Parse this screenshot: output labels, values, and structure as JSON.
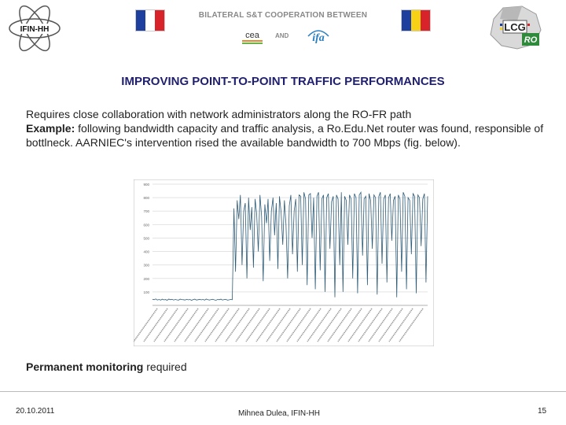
{
  "header": {
    "ifin_logo_text": "IFIN-HH",
    "title": "BILATERAL S&T COOPERATION BETWEEN",
    "and_label": "AND",
    "cea_logo_text": "cea",
    "ifa_logo_text": "ifa",
    "lcg_logo_text": "LCG",
    "ro_logo_text": "RO",
    "colors": {
      "france": [
        "#1f3f9f",
        "#ffffff",
        "#d8232a"
      ],
      "romania": [
        "#1f3f9f",
        "#f6d116",
        "#d8232a"
      ]
    }
  },
  "slide": {
    "title": "IMPROVING POINT-TO-POINT TRAFFIC PERFORMANCES",
    "line1": "Requires close collaboration with network administrators along the RO-FR path",
    "example_label": "Example:",
    "example_text": " following bandwidth capacity and traffic analysis, a Ro.Edu.Net router was found, responsible of bottlneck. AARNIEC's intervention rised the available bandwidth to 700 Mbps (fig. below).",
    "monitoring_bold": "Permanent monitoring",
    "monitoring_rest": " required"
  },
  "chart_data": {
    "type": "line",
    "title": "",
    "xlabel": "",
    "ylabel": "",
    "ylim": [
      0,
      900
    ],
    "yticks": [
      "100",
      "200",
      "300",
      "400",
      "500",
      "600",
      "700",
      "800",
      "900"
    ],
    "grid": true,
    "line_color": "#2e5c78",
    "series": [
      {
        "values": [
          45,
          42,
          48,
          40,
          44,
          39,
          46,
          41,
          43,
          38,
          47,
          42,
          45,
          40,
          44,
          41,
          39,
          46,
          43,
          42,
          40,
          45,
          41,
          44,
          38,
          43,
          46,
          40,
          42,
          45,
          41,
          44,
          39,
          47,
          42,
          40,
          43,
          45,
          41,
          38,
          44,
          42,
          46,
          40,
          43,
          45,
          39,
          41,
          44,
          42,
          720,
          250,
          780,
          640,
          820,
          300,
          700,
          760,
          200,
          800,
          560,
          730,
          280,
          790,
          680,
          400,
          820,
          660,
          180,
          750,
          610,
          790,
          330,
          700,
          800,
          520,
          760,
          270,
          810,
          690,
          450,
          780,
          600,
          200,
          740,
          820,
          380,
          700,
          790,
          250,
          820,
          810,
          300,
          840,
          790,
          150,
          820,
          830,
          500,
          800,
          120,
          810,
          840,
          260,
          790,
          820,
          100,
          800,
          830,
          420,
          770,
          810,
          60,
          820,
          790,
          300,
          840,
          100,
          810,
          780,
          450,
          820,
          790,
          200,
          830,
          800,
          90,
          820,
          840,
          370,
          790,
          810,
          150,
          830,
          780,
          420,
          820,
          800,
          80,
          810,
          840,
          310,
          790,
          820,
          170,
          800,
          830,
          480,
          780,
          810,
          60,
          820,
          790,
          250,
          840,
          810,
          120,
          800,
          780,
          380,
          830,
          810,
          90,
          820,
          800,
          440,
          790,
          830,
          170,
          810
        ]
      }
    ]
  },
  "footer": {
    "date": "20.10.2011",
    "author": "Mihnea Dulea, IFIN-HH",
    "page": "15"
  }
}
